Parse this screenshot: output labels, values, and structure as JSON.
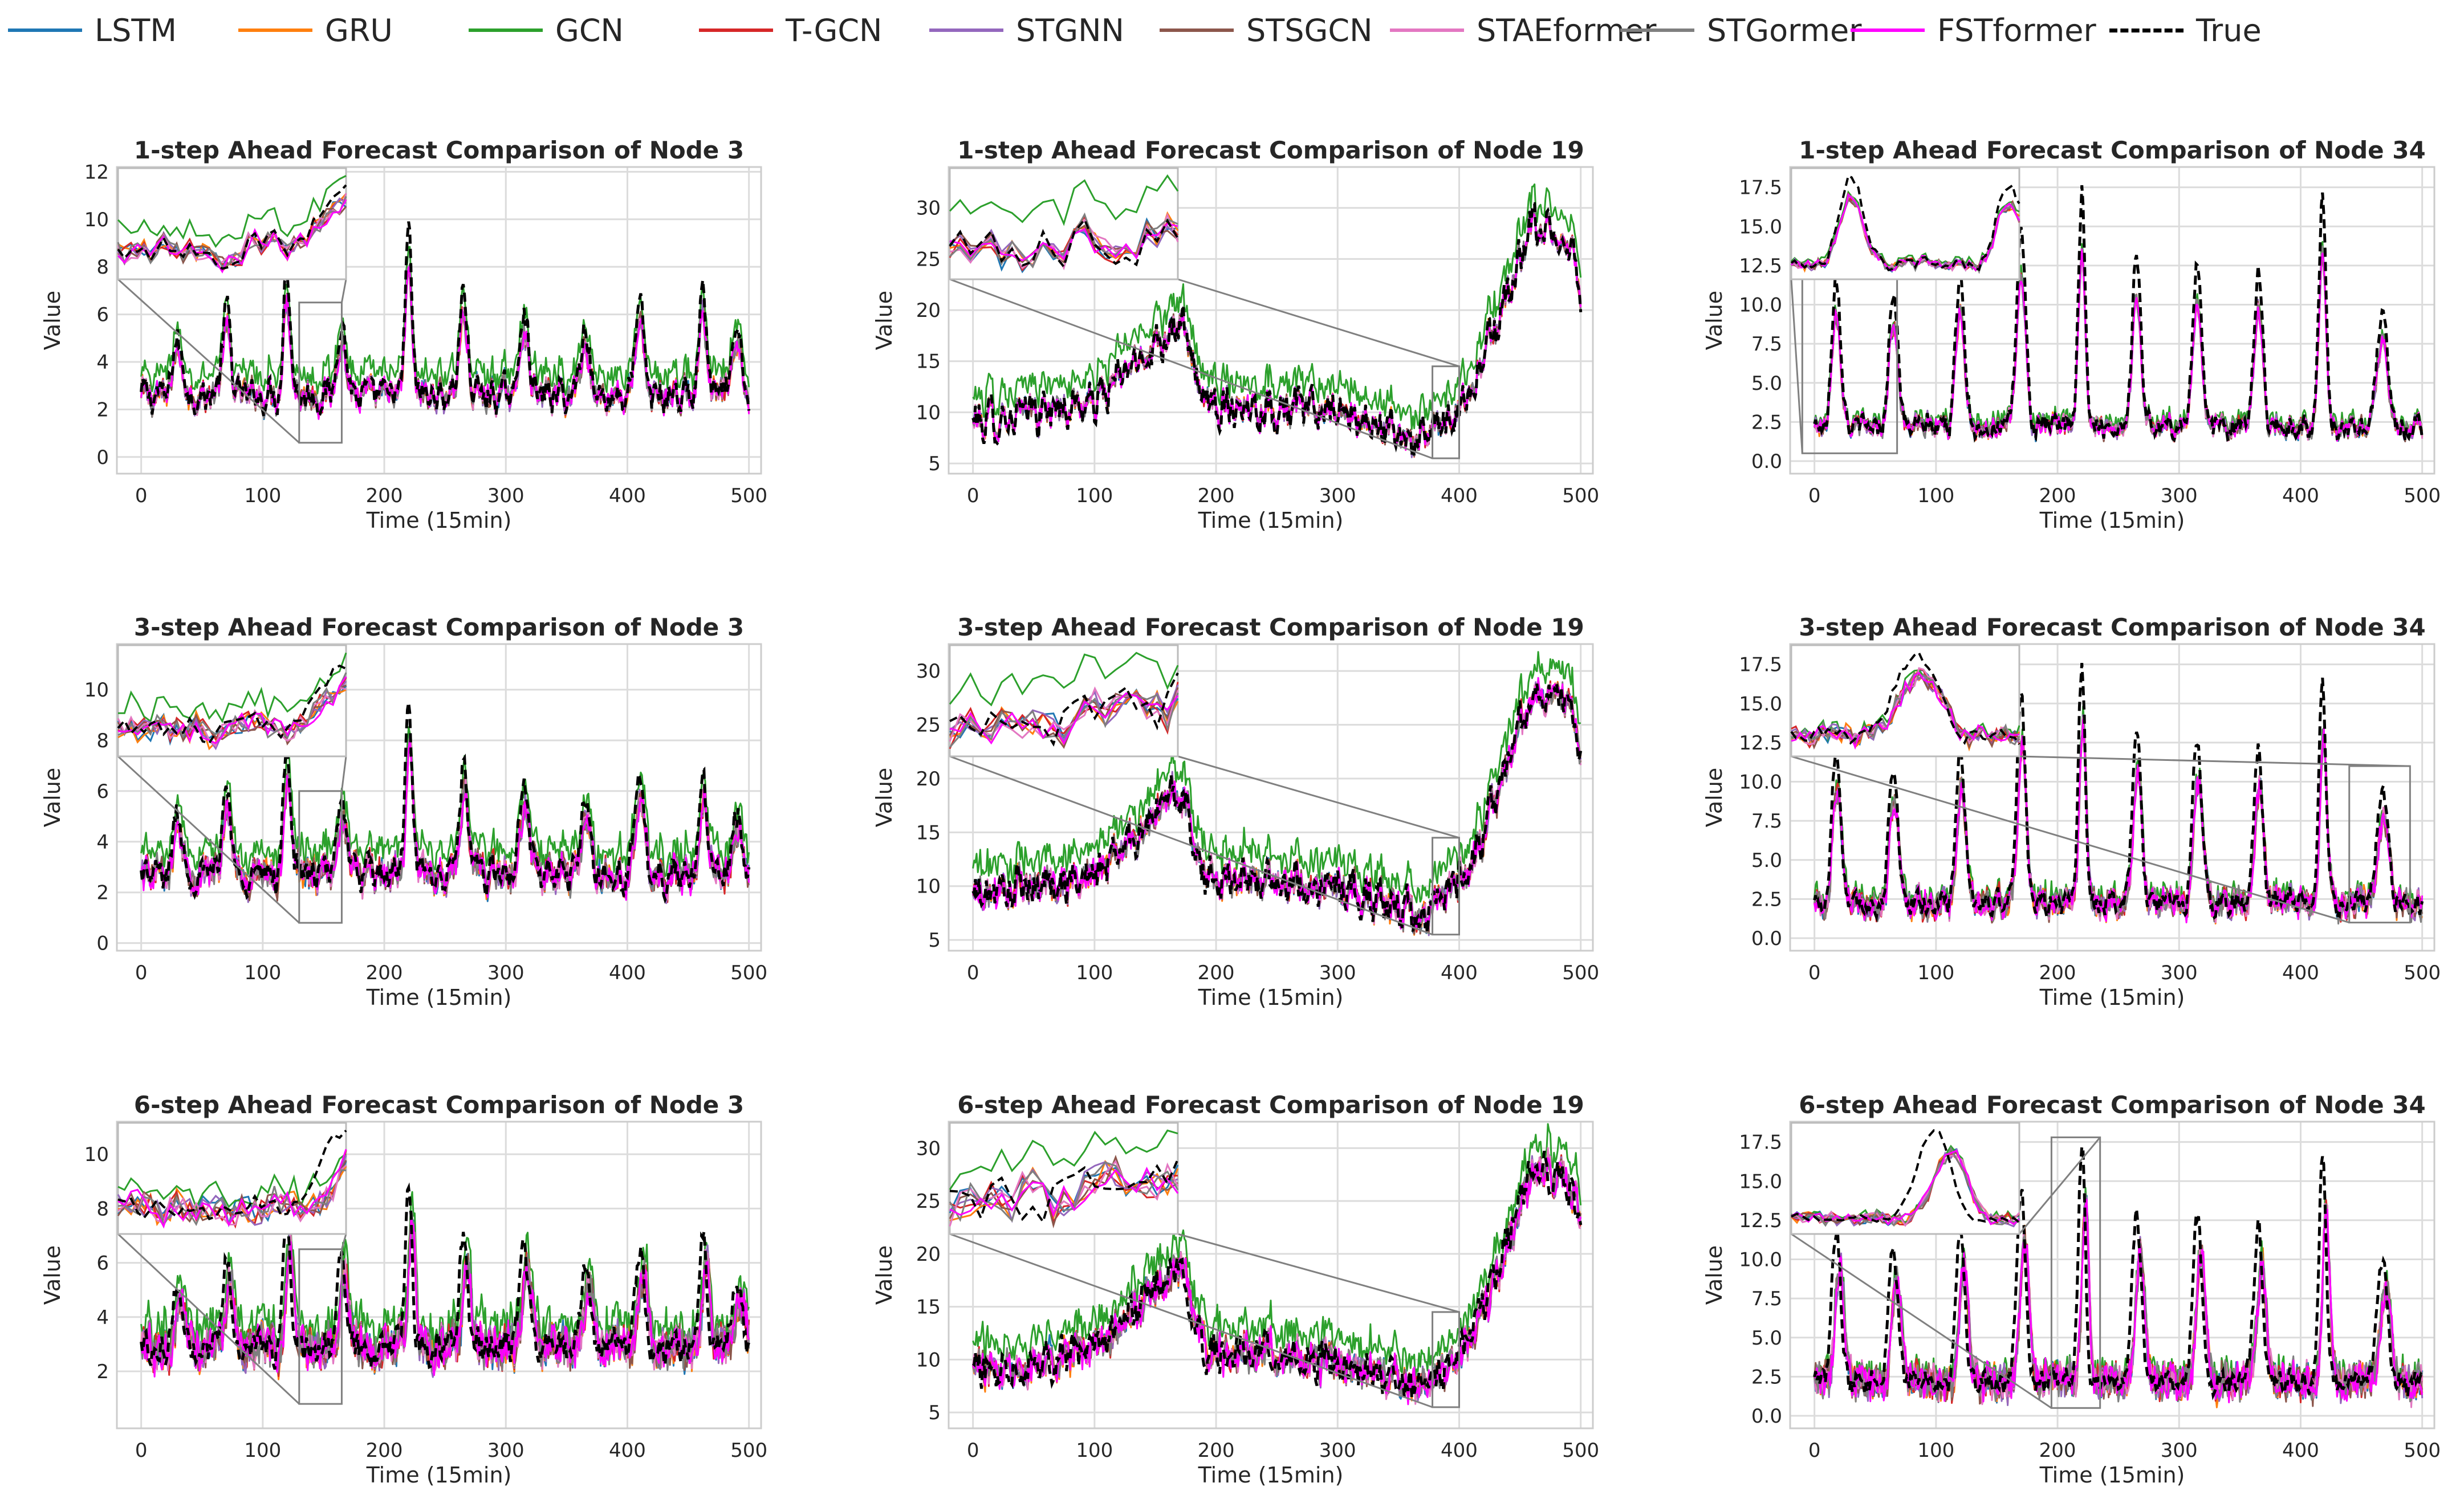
{
  "legend": [
    {
      "name": "LSTM",
      "color": "#1f77b4"
    },
    {
      "name": "GRU",
      "color": "#ff7f0e"
    },
    {
      "name": "GCN",
      "color": "#2ca02c"
    },
    {
      "name": "T-GCN",
      "color": "#d62728"
    },
    {
      "name": "STGNN",
      "color": "#9467bd"
    },
    {
      "name": "STSGCN",
      "color": "#8c564b"
    },
    {
      "name": "STAEformer",
      "color": "#e377c2"
    },
    {
      "name": "STGormer",
      "color": "#7f7f7f"
    },
    {
      "name": "FSTformer",
      "color": "#ff00ff"
    },
    {
      "name": "True",
      "color": "#000000",
      "dashed": true
    }
  ],
  "chart_data": [
    {
      "type": "line",
      "title": "1-step Ahead Forecast Comparison of Node 3",
      "xlabel": "Time (15min)",
      "ylabel": "Value",
      "xlim": [
        -20,
        510
      ],
      "ylim": [
        -0.7,
        12.2
      ],
      "xticks": [
        0,
        100,
        200,
        300,
        400,
        500
      ],
      "yticks": [
        0,
        2,
        4,
        6,
        8,
        10,
        12
      ],
      "profile": {
        "base": 2.6,
        "peaks": [
          [
            30,
            2.5,
            5
          ],
          [
            70,
            3.5,
            5
          ],
          [
            120,
            5.5,
            4
          ],
          [
            165,
            3.2,
            5
          ],
          [
            220,
            6.6,
            4
          ],
          [
            265,
            4.2,
            5
          ],
          [
            315,
            3.8,
            5
          ],
          [
            365,
            3,
            5
          ],
          [
            410,
            3.8,
            5
          ],
          [
            462,
            4.6,
            4
          ],
          [
            490,
            2.6,
            5
          ]
        ],
        "trend": [],
        "noise": 0.55,
        "gcn_offset": 0.9,
        "spread": 0.35,
        "true_lag": 0
      },
      "zoom_region": {
        "x": [
          130,
          165
        ],
        "y": [
          0.6,
          6.5
        ]
      }
    },
    {
      "type": "line",
      "title": "1-step Ahead Forecast Comparison of Node 19",
      "xlabel": "Time (15min)",
      "ylabel": "Value",
      "xlim": [
        -20,
        510
      ],
      "ylim": [
        4,
        34
      ],
      "xticks": [
        0,
        100,
        200,
        300,
        400,
        500
      ],
      "yticks": [
        5,
        10,
        15,
        20,
        25,
        30
      ],
      "profile": {
        "base": 9,
        "peaks": [],
        "trend": [
          [
            0,
            9
          ],
          [
            100,
            11
          ],
          [
            170,
            19
          ],
          [
            190,
            11
          ],
          [
            300,
            10
          ],
          [
            370,
            7
          ],
          [
            410,
            12
          ],
          [
            460,
            28
          ],
          [
            490,
            27
          ],
          [
            500,
            22
          ]
        ],
        "noise": 1.6,
        "gcn_offset": 2.5,
        "spread": 0.6,
        "true_lag": 0
      },
      "zoom_region": {
        "x": [
          378,
          400
        ],
        "y": [
          5.5,
          14.5
        ]
      }
    },
    {
      "type": "line",
      "title": "1-step Ahead Forecast Comparison of Node 34",
      "xlabel": "Time (15min)",
      "ylabel": "Value",
      "xlim": [
        -20,
        510
      ],
      "ylim": [
        -0.8,
        18.8
      ],
      "xticks": [
        0,
        100,
        200,
        300,
        400,
        500
      ],
      "yticks": [
        0.0,
        2.5,
        5.0,
        7.5,
        10.0,
        12.5,
        15.0,
        17.5
      ],
      "profile": {
        "base": 2.2,
        "peaks": [
          [
            18,
            10,
            5
          ],
          [
            65,
            9,
            5
          ],
          [
            120,
            10,
            5
          ],
          [
            170,
            13,
            5
          ],
          [
            220,
            15,
            4
          ],
          [
            265,
            11,
            5
          ],
          [
            315,
            11,
            5
          ],
          [
            365,
            10,
            5
          ],
          [
            418,
            14.5,
            4
          ],
          [
            467,
            7.5,
            6
          ]
        ],
        "trend": [],
        "noise": 0.6,
        "gcn_offset": 0.4,
        "spread": 0.4,
        "true_lag": 0
      },
      "zoom_region": {
        "x": [
          -10,
          68
        ],
        "y": [
          0.5,
          12
        ]
      }
    },
    {
      "type": "line",
      "title": "3-step Ahead Forecast Comparison of Node 3",
      "xlabel": "Time (15min)",
      "ylabel": "Value",
      "xlim": [
        -20,
        510
      ],
      "ylim": [
        -0.3,
        11.8
      ],
      "xticks": [
        0,
        100,
        200,
        300,
        400,
        500
      ],
      "yticks": [
        0,
        2,
        4,
        6,
        8,
        10
      ],
      "profile": {
        "base": 2.7,
        "peaks": [
          [
            30,
            2.5,
            5
          ],
          [
            70,
            3.5,
            5
          ],
          [
            120,
            5.3,
            4
          ],
          [
            165,
            3.2,
            5
          ],
          [
            220,
            6.4,
            4
          ],
          [
            265,
            4.1,
            5
          ],
          [
            315,
            3.7,
            5
          ],
          [
            365,
            3,
            5
          ],
          [
            410,
            3.7,
            5
          ],
          [
            462,
            4.4,
            4
          ],
          [
            490,
            2.6,
            5
          ]
        ],
        "trend": [],
        "noise": 0.5,
        "gcn_offset": 0.9,
        "spread": 0.45,
        "true_lag": 1
      },
      "zoom_region": {
        "x": [
          130,
          165
        ],
        "y": [
          0.8,
          6
        ]
      }
    },
    {
      "type": "line",
      "title": "3-step Ahead Forecast Comparison of Node 19",
      "xlabel": "Time (15min)",
      "ylabel": "Value",
      "xlim": [
        -20,
        510
      ],
      "ylim": [
        4,
        32.5
      ],
      "xticks": [
        0,
        100,
        200,
        300,
        400,
        500
      ],
      "yticks": [
        5,
        10,
        15,
        20,
        25,
        30
      ],
      "profile": {
        "base": 9,
        "peaks": [],
        "trend": [
          [
            0,
            9
          ],
          [
            100,
            11
          ],
          [
            170,
            19
          ],
          [
            190,
            11
          ],
          [
            300,
            10
          ],
          [
            370,
            7
          ],
          [
            410,
            12
          ],
          [
            460,
            28
          ],
          [
            490,
            27
          ],
          [
            500,
            22
          ]
        ],
        "noise": 1.5,
        "gcn_offset": 2.5,
        "spread": 0.8,
        "true_lag": 1
      },
      "zoom_region": {
        "x": [
          378,
          400
        ],
        "y": [
          5.5,
          14.5
        ]
      }
    },
    {
      "type": "line",
      "title": "3-step Ahead Forecast Comparison of Node 34",
      "xlabel": "Time (15min)",
      "ylabel": "Value",
      "xlim": [
        -20,
        510
      ],
      "ylim": [
        -0.8,
        18.8
      ],
      "xticks": [
        0,
        100,
        200,
        300,
        400,
        500
      ],
      "yticks": [
        0.0,
        2.5,
        5.0,
        7.5,
        10.0,
        12.5,
        15.0,
        17.5
      ],
      "profile": {
        "base": 2.2,
        "peaks": [
          [
            18,
            10,
            5
          ],
          [
            65,
            9,
            5
          ],
          [
            120,
            10,
            5
          ],
          [
            170,
            13,
            5
          ],
          [
            220,
            15,
            4
          ],
          [
            265,
            11,
            5
          ],
          [
            315,
            11,
            5
          ],
          [
            365,
            10,
            5
          ],
          [
            418,
            14.5,
            4
          ],
          [
            467,
            7.5,
            6
          ]
        ],
        "trend": [],
        "noise": 0.6,
        "gcn_offset": 0.4,
        "spread": 0.7,
        "true_lag": 1
      },
      "zoom_region": {
        "x": [
          440,
          490
        ],
        "y": [
          1,
          11
        ]
      }
    },
    {
      "type": "line",
      "title": "6-step Ahead Forecast Comparison of Node 3",
      "xlabel": "Time (15min)",
      "ylabel": "Value",
      "xlim": [
        -20,
        510
      ],
      "ylim": [
        -0.1,
        11.2
      ],
      "xticks": [
        0,
        100,
        200,
        300,
        400,
        500
      ],
      "yticks": [
        2,
        4,
        6,
        8,
        10
      ],
      "profile": {
        "base": 2.9,
        "peaks": [
          [
            30,
            2.3,
            5
          ],
          [
            70,
            3.2,
            5
          ],
          [
            120,
            5,
            4
          ],
          [
            165,
            3,
            5
          ],
          [
            220,
            5.8,
            4
          ],
          [
            265,
            4,
            5
          ],
          [
            315,
            3.6,
            5
          ],
          [
            365,
            3,
            5
          ],
          [
            410,
            3.6,
            5
          ],
          [
            462,
            4.2,
            4
          ],
          [
            490,
            2.4,
            5
          ]
        ],
        "trend": [],
        "noise": 0.45,
        "gcn_offset": 0.8,
        "spread": 0.6,
        "true_lag": 3
      },
      "zoom_region": {
        "x": [
          130,
          165
        ],
        "y": [
          0.8,
          6.5
        ]
      }
    },
    {
      "type": "line",
      "title": "6-step Ahead Forecast Comparison of Node 19",
      "xlabel": "Time (15min)",
      "ylabel": "Value",
      "xlim": [
        -20,
        510
      ],
      "ylim": [
        3.5,
        32.5
      ],
      "xticks": [
        0,
        100,
        200,
        300,
        400,
        500
      ],
      "yticks": [
        5,
        10,
        15,
        20,
        25,
        30
      ],
      "profile": {
        "base": 9,
        "peaks": [],
        "trend": [
          [
            0,
            9
          ],
          [
            100,
            11
          ],
          [
            170,
            19
          ],
          [
            190,
            11
          ],
          [
            300,
            10
          ],
          [
            370,
            7
          ],
          [
            410,
            12
          ],
          [
            460,
            28
          ],
          [
            490,
            27
          ],
          [
            500,
            22
          ]
        ],
        "noise": 1.4,
        "gcn_offset": 2.4,
        "spread": 1.0,
        "true_lag": 3
      },
      "zoom_region": {
        "x": [
          378,
          400
        ],
        "y": [
          5.5,
          14.5
        ]
      }
    },
    {
      "type": "line",
      "title": "6-step Ahead Forecast Comparison of Node 34",
      "xlabel": "Time (15min)",
      "ylabel": "Value",
      "xlim": [
        -20,
        510
      ],
      "ylim": [
        -0.8,
        18.8
      ],
      "xticks": [
        0,
        100,
        200,
        300,
        400,
        500
      ],
      "yticks": [
        0.0,
        2.5,
        5.0,
        7.5,
        10.0,
        12.5,
        15.0,
        17.5
      ],
      "profile": {
        "base": 2.2,
        "peaks": [
          [
            18,
            10,
            5
          ],
          [
            65,
            9,
            5
          ],
          [
            120,
            10,
            5
          ],
          [
            170,
            13,
            5
          ],
          [
            220,
            15,
            4
          ],
          [
            265,
            11,
            5
          ],
          [
            315,
            11,
            5
          ],
          [
            365,
            10,
            5
          ],
          [
            418,
            14.5,
            4
          ],
          [
            467,
            7.5,
            6
          ]
        ],
        "trend": [],
        "noise": 0.6,
        "gcn_offset": 0.4,
        "spread": 1.0,
        "true_lag": 3
      },
      "zoom_region": {
        "x": [
          195,
          235
        ],
        "y": [
          0.5,
          17.8
        ]
      }
    }
  ]
}
